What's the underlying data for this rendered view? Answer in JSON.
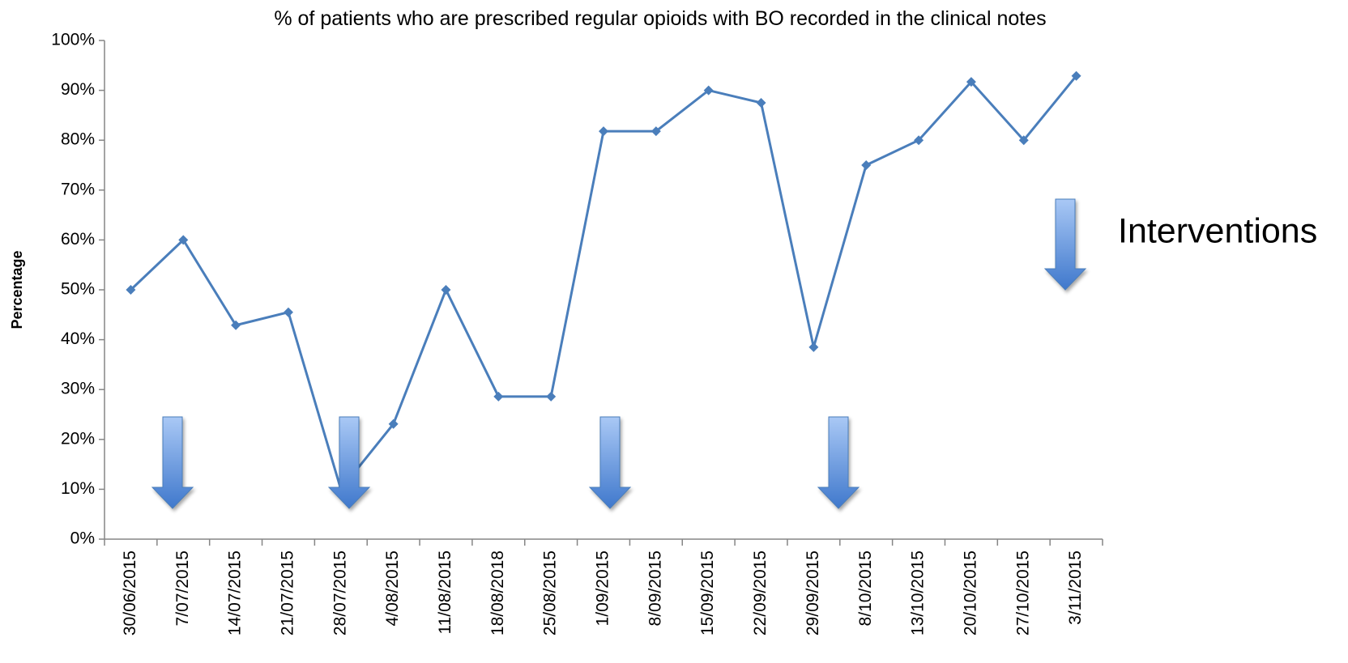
{
  "chart_data": {
    "type": "line",
    "title": "% of patients who are prescribed regular opioids with BO recorded in the clinical notes",
    "y_label": "Percentage",
    "legend_label": "Interventions",
    "categories": [
      "30/06/2015",
      "7/07/2015",
      "14/07/2015",
      "21/07/2015",
      "28/07/2015",
      "4/08/2015",
      "11/08/2015",
      "18/08/2018",
      "25/08/2015",
      "1/09/2015",
      "8/09/2015",
      "15/09/2015",
      "22/09/2015",
      "29/09/2015",
      "8/10/2015",
      "13/10/2015",
      "20/10/2015",
      "27/10/2015",
      "3/11/2015"
    ],
    "series": [
      {
        "name": "Percentage",
        "color": "#4a7ebb",
        "values": [
          50,
          60,
          42.9,
          45.5,
          10,
          23.1,
          50,
          28.6,
          28.6,
          81.8,
          81.8,
          90,
          87.5,
          38.5,
          75,
          80,
          91.7,
          80,
          92.9
        ]
      }
    ],
    "ylim": [
      0,
      100
    ],
    "yticks": [
      {
        "value": 0,
        "label": "0%"
      },
      {
        "value": 10,
        "label": "10%"
      },
      {
        "value": 20,
        "label": "20%"
      },
      {
        "value": 30,
        "label": "30%"
      },
      {
        "value": 40,
        "label": "40%"
      },
      {
        "value": 50,
        "label": "50%"
      },
      {
        "value": 60,
        "label": "60%"
      },
      {
        "value": 70,
        "label": "70%"
      },
      {
        "value": 80,
        "label": "80%"
      },
      {
        "value": 90,
        "label": "90%"
      },
      {
        "value": 100,
        "label": "100%"
      }
    ],
    "grid": false
  }
}
